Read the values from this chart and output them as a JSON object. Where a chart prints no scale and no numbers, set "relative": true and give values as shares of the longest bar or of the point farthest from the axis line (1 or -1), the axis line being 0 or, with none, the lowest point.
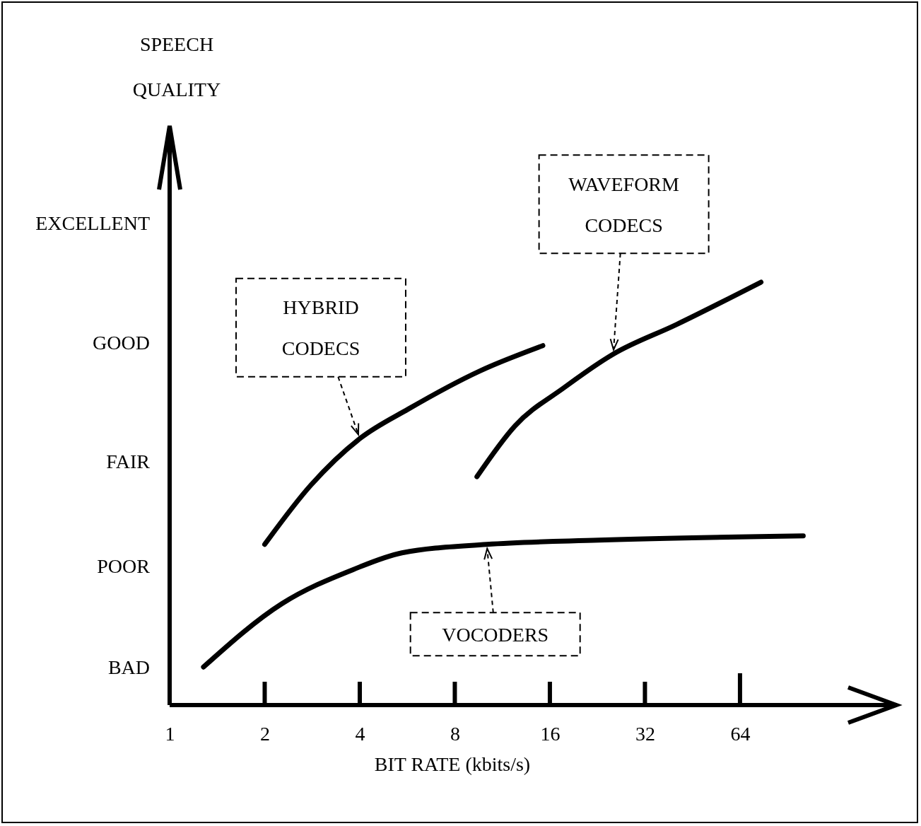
{
  "chart_data": {
    "type": "line",
    "xlabel": "BIT RATE (kbits/s)",
    "log": "x",
    "xlim": [
      1,
      200
    ],
    "xticks": [
      1,
      2,
      4,
      8,
      16,
      32,
      64
    ],
    "relative": true,
    "grid": false,
    "marker": "none",
    "line_style": "solid",
    "series": [
      {
        "color": "#000000",
        "x": [
          2,
          2.8,
          4,
          5.7,
          9.6,
          15.2
        ],
        "values": [
          0.38,
          0.52,
          0.63,
          0.7,
          0.79,
          0.85
        ]
      },
      {
        "color": "#000000",
        "x": [
          9.4,
          12.4,
          17.7,
          25.4,
          40.3,
          74.6
        ],
        "values": [
          0.54,
          0.66,
          0.75,
          0.83,
          0.9,
          1
        ]
      },
      {
        "color": "#000000",
        "x": [
          1.28,
          2.27,
          3.8,
          5.44,
          10.1,
          22.9,
          101.5
        ],
        "values": [
          0.09,
          0.24,
          0.32,
          0.36,
          0.38,
          0.39,
          0.4
        ]
      }
    ],
    "annotations": [
      {
        "text": "HYBRID CODECS",
        "x": 4,
        "y": 0.63
      },
      {
        "text": "WAVEFORM CODECS",
        "x": 25.4,
        "y": 0.83
      },
      {
        "text": "VOCODERS",
        "x": 10.1,
        "y": 0.38
      },
      "SPEECH QUALITY",
      "BAD",
      "POOR",
      "FAIR",
      "GOOD",
      "EXCELLENT"
    ]
  }
}
